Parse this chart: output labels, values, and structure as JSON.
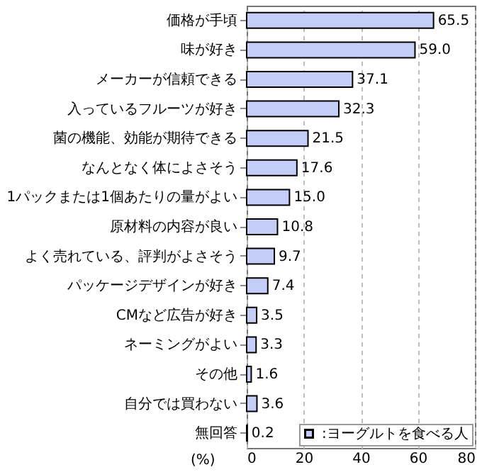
{
  "chart_data": {
    "type": "bar",
    "orientation": "horizontal",
    "xlabel": "(%)",
    "categories": [
      "価格が手頃",
      "味が好き",
      "メーカーが信頼できる",
      "入っているフルーツが好き",
      "菌の機能、効能が期待できる",
      "なんとなく体によさそう",
      "1パックまたは1個あたりの量がよい",
      "原材料の内容が良い",
      "よく売れている、評判がよさそう",
      "パッケージデザインが好き",
      "CMなど広告が好き",
      "ネーミングがよい",
      "その他",
      "自分では買わない",
      "無回答"
    ],
    "series": [
      {
        "name": ":ヨーグルトを食べる人",
        "color": "#c3cdf5",
        "values": [
          65.5,
          59.0,
          37.1,
          32.3,
          21.5,
          17.6,
          15.0,
          10.8,
          9.7,
          7.4,
          3.5,
          3.3,
          1.6,
          3.6,
          0.2
        ],
        "value_labels": [
          "65.5",
          "59.0",
          "37.1",
          "32.3",
          "21.5",
          "17.6",
          "15.0",
          "10.8",
          "9.7",
          "7.4",
          "3.5",
          "3.3",
          "1.6",
          "3.6",
          "0.2"
        ]
      }
    ],
    "xlim": [
      0,
      80
    ],
    "xticks": [
      0,
      20,
      40,
      60,
      80
    ],
    "grid": "x",
    "legend": "bottom right"
  }
}
